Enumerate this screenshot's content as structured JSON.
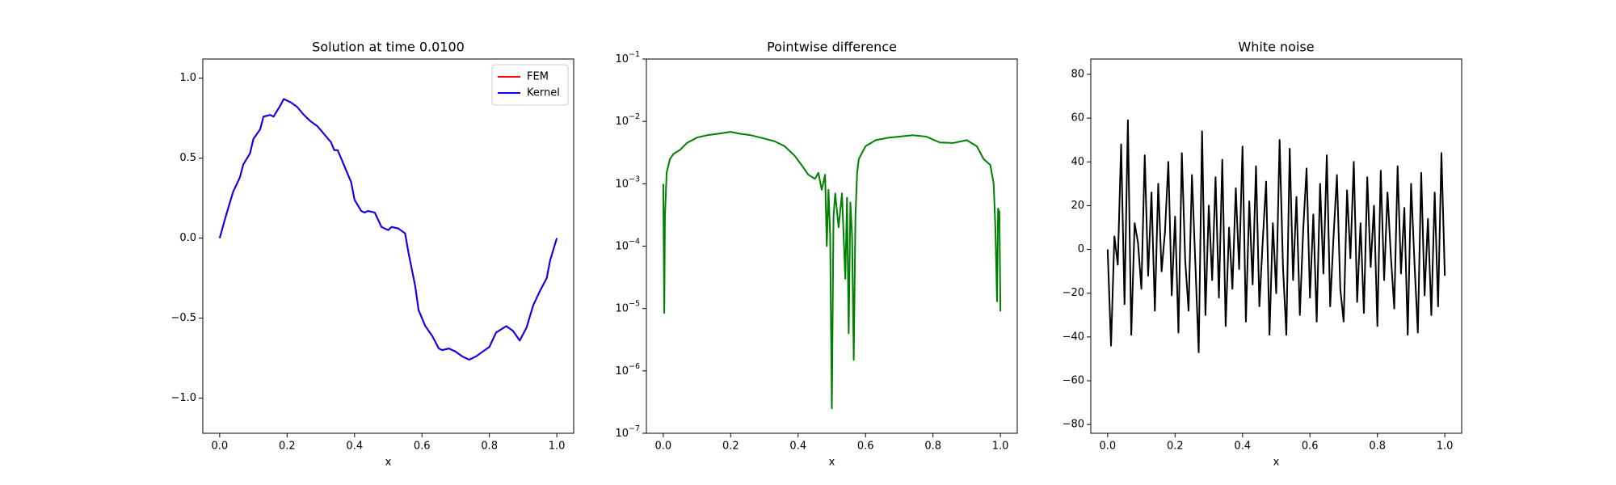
{
  "chart_data": [
    {
      "type": "line",
      "title": "Solution at time 0.0100",
      "xlabel": "x",
      "x": [
        0,
        0.02,
        0.04,
        0.06,
        0.07,
        0.09,
        0.1,
        0.12,
        0.13,
        0.15,
        0.16,
        0.18,
        0.19,
        0.21,
        0.23,
        0.25,
        0.27,
        0.29,
        0.31,
        0.33,
        0.34,
        0.35,
        0.37,
        0.39,
        0.4,
        0.42,
        0.43,
        0.44,
        0.46,
        0.48,
        0.5,
        0.51,
        0.53,
        0.55,
        0.56,
        0.58,
        0.59,
        0.61,
        0.63,
        0.65,
        0.66,
        0.68,
        0.7,
        0.72,
        0.74,
        0.76,
        0.78,
        0.8,
        0.82,
        0.85,
        0.87,
        0.89,
        0.91,
        0.93,
        0.95,
        0.97,
        0.98,
        1.0
      ],
      "series": [
        {
          "name": "FEM",
          "color": "#ff0000",
          "values": [
            0,
            0.15,
            0.29,
            0.38,
            0.46,
            0.53,
            0.62,
            0.68,
            0.76,
            0.77,
            0.76,
            0.83,
            0.87,
            0.85,
            0.82,
            0.77,
            0.73,
            0.7,
            0.65,
            0.6,
            0.55,
            0.55,
            0.45,
            0.35,
            0.24,
            0.17,
            0.16,
            0.17,
            0.16,
            0.07,
            0.05,
            0.07,
            0.06,
            0.03,
            -0.09,
            -0.3,
            -0.45,
            -0.55,
            -0.61,
            -0.69,
            -0.7,
            -0.69,
            -0.71,
            -0.74,
            -0.76,
            -0.74,
            -0.71,
            -0.68,
            -0.59,
            -0.55,
            -0.58,
            -0.64,
            -0.56,
            -0.42,
            -0.33,
            -0.25,
            -0.14,
            0
          ]
        },
        {
          "name": "Kernel",
          "color": "#0000ff",
          "values": [
            0,
            0.15,
            0.29,
            0.38,
            0.46,
            0.53,
            0.62,
            0.68,
            0.76,
            0.77,
            0.76,
            0.83,
            0.87,
            0.85,
            0.82,
            0.77,
            0.73,
            0.7,
            0.65,
            0.6,
            0.55,
            0.55,
            0.45,
            0.35,
            0.24,
            0.17,
            0.16,
            0.17,
            0.16,
            0.07,
            0.05,
            0.07,
            0.06,
            0.03,
            -0.09,
            -0.3,
            -0.45,
            -0.55,
            -0.61,
            -0.69,
            -0.7,
            -0.69,
            -0.71,
            -0.74,
            -0.76,
            -0.74,
            -0.71,
            -0.68,
            -0.59,
            -0.55,
            -0.58,
            -0.64,
            -0.56,
            -0.42,
            -0.33,
            -0.25,
            -0.14,
            0
          ]
        }
      ],
      "xlim": [
        -0.05,
        1.05
      ],
      "ylim": [
        -1.22,
        1.12
      ],
      "xticks": [
        {
          "value": 0,
          "label": "0.0"
        },
        0.2,
        0.4,
        0.6,
        0.8,
        {
          "value": 1,
          "label": "1.0"
        }
      ],
      "yticks": [
        {
          "value": -1,
          "label": "−1.0"
        },
        {
          "value": -0.5,
          "label": "−0.5"
        },
        {
          "value": 0,
          "label": "0.0"
        },
        0.5,
        {
          "value": 1,
          "label": "1.0"
        }
      ],
      "legend": "upper right"
    },
    {
      "type": "line",
      "title": "Pointwise difference",
      "xlabel": "x",
      "log_y": true,
      "x": [
        0,
        0.003,
        0.005,
        0.01,
        0.02,
        0.03,
        0.05,
        0.07,
        0.1,
        0.13,
        0.16,
        0.2,
        0.23,
        0.26,
        0.3,
        0.33,
        0.36,
        0.39,
        0.41,
        0.43,
        0.45,
        0.46,
        0.47,
        0.48,
        0.485,
        0.49,
        0.495,
        0.5,
        0.505,
        0.51,
        0.52,
        0.53,
        0.54,
        0.545,
        0.55,
        0.555,
        0.56,
        0.565,
        0.57,
        0.575,
        0.58,
        0.6,
        0.63,
        0.67,
        0.7,
        0.74,
        0.78,
        0.82,
        0.86,
        0.9,
        0.93,
        0.95,
        0.97,
        0.98,
        0.985,
        0.99,
        0.993,
        0.997,
        1.0
      ],
      "series": [
        {
          "color": "#008000",
          "values": [
            0.001,
            8.5e-06,
            0.0003,
            0.0015,
            0.0025,
            0.003,
            0.0035,
            0.0045,
            0.0055,
            0.006,
            0.0063,
            0.0068,
            0.0063,
            0.006,
            0.0053,
            0.0048,
            0.004,
            0.0028,
            0.002,
            0.0014,
            0.0012,
            0.0015,
            0.0008,
            0.0014,
            0.0001,
            0.0008,
            0.00015,
            2.5e-07,
            0.0003,
            0.0007,
            0.0002,
            0.0007,
            3e-05,
            0.0006,
            4e-06,
            0.0005,
            0.00015,
            1.5e-06,
            0.0003,
            0.0015,
            0.0025,
            0.004,
            0.005,
            0.0055,
            0.0057,
            0.006,
            0.0057,
            0.0046,
            0.0045,
            0.005,
            0.004,
            0.0025,
            0.002,
            0.001,
            0.0002,
            1.3e-05,
            0.0004,
            0.00035,
            9e-06
          ]
        }
      ],
      "xlim": [
        -0.05,
        1.05
      ],
      "ylim": [
        1e-07,
        0.1
      ],
      "xticks": [
        {
          "value": 0,
          "label": "0.0"
        },
        0.2,
        0.4,
        0.6,
        0.8,
        {
          "value": 1,
          "label": "1.0"
        }
      ],
      "yticks": [
        {
          "value": 1e-07,
          "label": "10−7"
        },
        {
          "value": 1e-06,
          "label": "10−6"
        },
        {
          "value": 1e-05,
          "label": "10−5"
        },
        {
          "value": 0.0001,
          "label": "10−4"
        },
        {
          "value": 0.001,
          "label": "10−3"
        },
        {
          "value": 0.01,
          "label": "10−2"
        },
        {
          "value": 0.1,
          "label": "10−1"
        }
      ]
    },
    {
      "type": "line",
      "title": "White noise",
      "xlabel": "x",
      "x": [
        0,
        0.01,
        0.02,
        0.03,
        0.04,
        0.05,
        0.06,
        0.07,
        0.08,
        0.09,
        0.1,
        0.11,
        0.12,
        0.13,
        0.14,
        0.15,
        0.16,
        0.17,
        0.18,
        0.19,
        0.2,
        0.21,
        0.22,
        0.23,
        0.24,
        0.25,
        0.26,
        0.27,
        0.28,
        0.29,
        0.3,
        0.31,
        0.32,
        0.33,
        0.34,
        0.35,
        0.36,
        0.37,
        0.38,
        0.39,
        0.4,
        0.41,
        0.42,
        0.43,
        0.44,
        0.45,
        0.46,
        0.47,
        0.48,
        0.49,
        0.5,
        0.51,
        0.52,
        0.53,
        0.54,
        0.55,
        0.56,
        0.57,
        0.58,
        0.59,
        0.6,
        0.61,
        0.62,
        0.63,
        0.64,
        0.65,
        0.66,
        0.67,
        0.68,
        0.69,
        0.7,
        0.71,
        0.72,
        0.73,
        0.74,
        0.75,
        0.76,
        0.77,
        0.78,
        0.79,
        0.8,
        0.81,
        0.82,
        0.83,
        0.84,
        0.85,
        0.86,
        0.87,
        0.88,
        0.89,
        0.9,
        0.91,
        0.92,
        0.93,
        0.94,
        0.95,
        0.96,
        0.97,
        0.98,
        0.99,
        1.0
      ],
      "series": [
        {
          "color": "#000000",
          "values": [
            0,
            -44,
            6,
            -7,
            48,
            -25,
            59,
            -39,
            12,
            3,
            -18,
            43,
            -12,
            26,
            -28,
            30,
            -10,
            8,
            40,
            -21,
            15,
            -38,
            44,
            -5,
            -28,
            34,
            -6,
            -47,
            54,
            -30,
            20,
            -14,
            33,
            -22,
            41,
            -35,
            10,
            -18,
            28,
            -9,
            47,
            -33,
            22,
            -16,
            38,
            -26,
            4,
            31,
            -39,
            12,
            -20,
            50,
            -8,
            -39,
            46,
            -14,
            24,
            -30,
            9,
            37,
            -22,
            16,
            -33,
            30,
            -11,
            43,
            -26,
            6,
            34,
            -18,
            -33,
            27,
            -4,
            40,
            -24,
            12,
            -29,
            33,
            -8,
            20,
            -35,
            36,
            -14,
            26,
            -3,
            -27,
            38,
            -11,
            19,
            -39,
            30,
            -6,
            -38,
            35,
            -21,
            14,
            -30,
            26,
            -26,
            44,
            -12
          ]
        }
      ],
      "xlim": [
        -0.05,
        1.05
      ],
      "ylim": [
        -84,
        87
      ],
      "xticks": [
        {
          "value": 0,
          "label": "0.0"
        },
        0.2,
        0.4,
        0.6,
        0.8,
        {
          "value": 1,
          "label": "1.0"
        }
      ],
      "yticks": [
        {
          "value": -80,
          "label": "−80"
        },
        {
          "value": -60,
          "label": "−60"
        },
        {
          "value": -40,
          "label": "−40"
        },
        {
          "value": -20,
          "label": "−20"
        },
        0,
        20,
        40,
        60,
        80
      ]
    }
  ]
}
